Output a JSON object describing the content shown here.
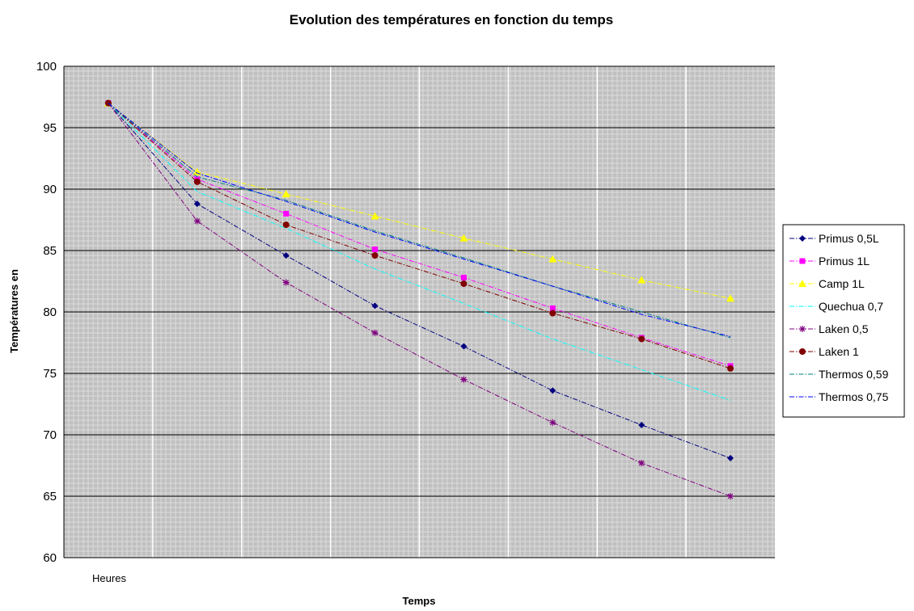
{
  "chart_data": {
    "type": "line",
    "title": "Evolution des températures en fonction du temps",
    "xlabel": "Temps",
    "ylabel": "Températures en",
    "x_category_label": "Heures",
    "ylim": [
      60,
      100
    ],
    "yticks": [
      60,
      65,
      70,
      75,
      80,
      85,
      90,
      95,
      100
    ],
    "grid": true,
    "legend_position": "right",
    "plot_background": "#c0c0c0",
    "categories": [
      "Heures",
      "",
      "",
      "",
      "",
      "",
      "",
      ""
    ],
    "series": [
      {
        "name": "Primus 0,5L",
        "color": "#000080",
        "marker": "diamond",
        "values": [
          97,
          88.8,
          84.6,
          80.5,
          77.2,
          73.6,
          70.8,
          68.1
        ]
      },
      {
        "name": "Primus 1L",
        "color": "#ff00ff",
        "marker": "square",
        "values": [
          97,
          90.8,
          88.0,
          85.1,
          82.8,
          80.3,
          77.9,
          75.6
        ]
      },
      {
        "name": "Camp 1L",
        "color": "#ffff00",
        "marker": "triangle",
        "values": [
          97,
          91.4,
          89.6,
          87.8,
          86.0,
          84.3,
          82.6,
          81.1
        ]
      },
      {
        "name": "Quechua 0,7",
        "color": "#00ffff",
        "marker": "none",
        "values": [
          97,
          89.8,
          86.8,
          83.5,
          80.7,
          77.8,
          75.3,
          72.8
        ]
      },
      {
        "name": "Laken 0,5",
        "color": "#800080",
        "marker": "star",
        "values": [
          97,
          87.4,
          82.4,
          78.3,
          74.5,
          71.0,
          67.7,
          65.0
        ]
      },
      {
        "name": "Laken 1",
        "color": "#800000",
        "marker": "circle",
        "values": [
          97,
          90.6,
          87.1,
          84.6,
          82.3,
          79.9,
          77.8,
          75.4
        ]
      },
      {
        "name": "Thermos 0,59",
        "color": "#008080",
        "marker": "none",
        "values": [
          97,
          91.0,
          89.1,
          86.6,
          84.4,
          82.1,
          80.0,
          77.9
        ]
      },
      {
        "name": "Thermos 0,75",
        "color": "#0000ff",
        "marker": "none",
        "values": [
          97,
          91.3,
          89.0,
          86.5,
          84.3,
          82.1,
          79.8,
          78.0
        ]
      }
    ]
  }
}
